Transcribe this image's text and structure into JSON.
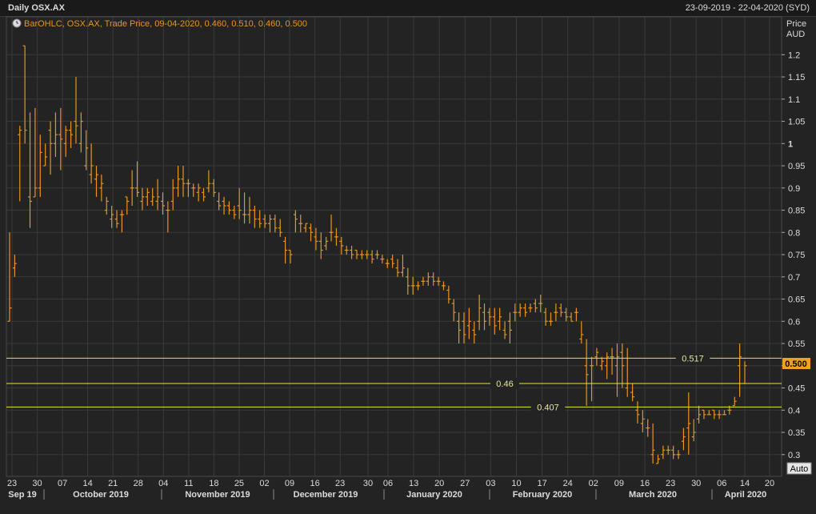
{
  "header": {
    "title": "Daily OSX.AX",
    "date_range": "23-09-2019 - 22-04-2020 (SYD)"
  },
  "legend": {
    "icon": "clock-icon",
    "text": "BarOHLC, OSX.AX, Trade Price, 09-04-2020, 0.460, 0.510, 0.460, 0.500"
  },
  "axis": {
    "price_label": "Price",
    "currency_label": "AUD",
    "auto_button": "Auto",
    "current_price_label": "0.500"
  },
  "colors": {
    "background": "#232323",
    "bars": "#e8951e",
    "grid": "#3a3a3a",
    "level_lines": "#e6e62e",
    "price_tag": "#f0a020"
  },
  "chart_data": {
    "type": "ohlc",
    "ylim": [
      0.26,
      1.26
    ],
    "grid": true,
    "y_ticks": [
      "1.2",
      "1.15",
      "1.1",
      "1.05",
      "1",
      "0.95",
      "0.9",
      "0.85",
      "0.8",
      "0.75",
      "0.7",
      "0.65",
      "0.6",
      "0.55",
      "0.5",
      "0.45",
      "0.4",
      "0.35",
      "0.3"
    ],
    "x_day_labels": [
      "23",
      "30",
      "07",
      "14",
      "21",
      "28",
      "04",
      "11",
      "18",
      "25",
      "02",
      "09",
      "16",
      "23",
      "30",
      "06",
      "13",
      "20",
      "27",
      "03",
      "10",
      "17",
      "24",
      "02",
      "09",
      "16",
      "23",
      "30",
      "06",
      "14",
      "20"
    ],
    "month_labels": [
      "Sep 19",
      "October 2019",
      "November 2019",
      "December 2019",
      "January 2020",
      "February 2020",
      "March 2020",
      "April 2020"
    ],
    "levels": [
      {
        "value": 0.517,
        "label": "0.517"
      },
      {
        "value": 0.46,
        "label": "0.46"
      },
      {
        "value": 0.407,
        "label": "0.407"
      }
    ],
    "bars": [
      [
        0.6,
        0.8,
        0.6,
        0.63
      ],
      [
        0.72,
        0.75,
        0.7,
        0.73
      ],
      [
        1.02,
        1.04,
        0.87,
        1.03
      ],
      [
        1.22,
        1.22,
        1.0,
        1.03
      ],
      [
        0.88,
        1.07,
        0.81,
        0.87
      ],
      [
        0.88,
        1.08,
        0.88,
        0.9
      ],
      [
        0.9,
        1.02,
        0.88,
        0.98
      ],
      [
        0.95,
        1.0,
        0.95,
        0.97
      ],
      [
        1.03,
        1.05,
        0.93,
        1.0
      ],
      [
        1.0,
        1.07,
        0.97,
        1.02
      ],
      [
        1.02,
        1.08,
        0.94,
        1.01
      ],
      [
        1.0,
        1.04,
        0.97,
        1.03
      ],
      [
        1.03,
        1.05,
        0.99,
        1.02
      ],
      [
        1.05,
        1.15,
        1.0,
        1.04
      ],
      [
        1.0,
        1.07,
        0.98,
        1.05
      ],
      [
        0.95,
        1.03,
        0.94,
        0.99
      ],
      [
        0.93,
        1.0,
        0.91,
        0.95
      ],
      [
        0.92,
        0.95,
        0.88,
        0.93
      ],
      [
        0.9,
        0.93,
        0.87,
        0.91
      ],
      [
        0.85,
        0.88,
        0.84,
        0.87
      ],
      [
        0.83,
        0.86,
        0.81,
        0.84
      ],
      [
        0.83,
        0.85,
        0.81,
        0.82
      ],
      [
        0.84,
        0.85,
        0.8,
        0.84
      ],
      [
        0.88,
        0.88,
        0.84,
        0.87
      ],
      [
        0.9,
        0.94,
        0.86,
        0.9
      ],
      [
        0.9,
        0.96,
        0.88,
        0.89
      ],
      [
        0.87,
        0.9,
        0.85,
        0.88
      ],
      [
        0.88,
        0.9,
        0.86,
        0.89
      ],
      [
        0.87,
        0.9,
        0.86,
        0.88
      ],
      [
        0.87,
        0.92,
        0.85,
        0.88
      ],
      [
        0.87,
        0.89,
        0.84,
        0.86
      ],
      [
        0.85,
        0.87,
        0.8,
        0.85
      ],
      [
        0.87,
        0.92,
        0.85,
        0.9
      ],
      [
        0.9,
        0.95,
        0.88,
        0.92
      ],
      [
        0.92,
        0.95,
        0.88,
        0.91
      ],
      [
        0.91,
        0.92,
        0.88,
        0.91
      ],
      [
        0.9,
        0.91,
        0.88,
        0.9
      ],
      [
        0.89,
        0.91,
        0.87,
        0.9
      ],
      [
        0.89,
        0.9,
        0.87,
        0.88
      ],
      [
        0.9,
        0.94,
        0.89,
        0.91
      ],
      [
        0.91,
        0.92,
        0.88,
        0.89
      ],
      [
        0.87,
        0.89,
        0.85,
        0.86
      ],
      [
        0.87,
        0.88,
        0.84,
        0.86
      ],
      [
        0.86,
        0.87,
        0.84,
        0.85
      ],
      [
        0.85,
        0.86,
        0.83,
        0.84
      ],
      [
        0.86,
        0.9,
        0.83,
        0.85
      ],
      [
        0.84,
        0.89,
        0.82,
        0.84
      ],
      [
        0.84,
        0.88,
        0.82,
        0.85
      ],
      [
        0.85,
        0.86,
        0.81,
        0.83
      ],
      [
        0.83,
        0.85,
        0.81,
        0.82
      ],
      [
        0.83,
        0.84,
        0.81,
        0.82
      ],
      [
        0.82,
        0.84,
        0.8,
        0.83
      ],
      [
        0.83,
        0.84,
        0.8,
        0.81
      ],
      [
        0.81,
        0.83,
        0.79,
        0.8
      ],
      [
        0.78,
        0.79,
        0.73,
        0.76
      ],
      [
        0.76,
        0.76,
        0.73,
        0.75
      ],
      [
        0.84,
        0.85,
        0.8,
        0.83
      ],
      [
        0.82,
        0.84,
        0.8,
        0.82
      ],
      [
        0.81,
        0.82,
        0.8,
        0.82
      ],
      [
        0.81,
        0.82,
        0.78,
        0.8
      ],
      [
        0.79,
        0.81,
        0.76,
        0.78
      ],
      [
        0.78,
        0.8,
        0.74,
        0.76
      ],
      [
        0.77,
        0.79,
        0.76,
        0.78
      ],
      [
        0.8,
        0.84,
        0.78,
        0.8
      ],
      [
        0.79,
        0.81,
        0.77,
        0.79
      ],
      [
        0.78,
        0.79,
        0.75,
        0.77
      ],
      [
        0.76,
        0.77,
        0.75,
        0.76
      ],
      [
        0.76,
        0.77,
        0.74,
        0.75
      ],
      [
        0.76,
        0.76,
        0.74,
        0.75
      ],
      [
        0.75,
        0.76,
        0.74,
        0.75
      ],
      [
        0.75,
        0.76,
        0.74,
        0.75
      ],
      [
        0.75,
        0.76,
        0.73,
        0.74
      ],
      [
        0.75,
        0.76,
        0.74,
        0.75
      ],
      [
        0.74,
        0.75,
        0.73,
        0.74
      ],
      [
        0.73,
        0.74,
        0.72,
        0.73
      ],
      [
        0.74,
        0.75,
        0.72,
        0.73
      ],
      [
        0.72,
        0.74,
        0.7,
        0.71
      ],
      [
        0.71,
        0.75,
        0.7,
        0.72
      ],
      [
        0.7,
        0.72,
        0.66,
        0.68
      ],
      [
        0.68,
        0.7,
        0.66,
        0.68
      ],
      [
        0.68,
        0.69,
        0.67,
        0.68
      ],
      [
        0.69,
        0.7,
        0.68,
        0.69
      ],
      [
        0.69,
        0.71,
        0.68,
        0.7
      ],
      [
        0.7,
        0.71,
        0.68,
        0.69
      ],
      [
        0.69,
        0.7,
        0.68,
        0.69
      ],
      [
        0.68,
        0.69,
        0.67,
        0.68
      ],
      [
        0.67,
        0.68,
        0.64,
        0.65
      ],
      [
        0.64,
        0.65,
        0.6,
        0.62
      ],
      [
        0.6,
        0.62,
        0.55,
        0.58
      ],
      [
        0.6,
        0.62,
        0.55,
        0.57
      ],
      [
        0.59,
        0.63,
        0.56,
        0.6
      ],
      [
        0.58,
        0.6,
        0.55,
        0.57
      ],
      [
        0.6,
        0.66,
        0.58,
        0.63
      ],
      [
        0.62,
        0.64,
        0.58,
        0.6
      ],
      [
        0.62,
        0.63,
        0.59,
        0.61
      ],
      [
        0.61,
        0.63,
        0.57,
        0.59
      ],
      [
        0.6,
        0.63,
        0.58,
        0.61
      ],
      [
        0.58,
        0.6,
        0.56,
        0.57
      ],
      [
        0.6,
        0.62,
        0.55,
        0.58
      ],
      [
        0.62,
        0.64,
        0.6,
        0.62
      ],
      [
        0.62,
        0.64,
        0.61,
        0.63
      ],
      [
        0.63,
        0.64,
        0.61,
        0.62
      ],
      [
        0.63,
        0.64,
        0.62,
        0.63
      ],
      [
        0.64,
        0.65,
        0.62,
        0.63
      ],
      [
        0.64,
        0.66,
        0.62,
        0.64
      ],
      [
        0.62,
        0.63,
        0.59,
        0.6
      ],
      [
        0.6,
        0.62,
        0.59,
        0.6
      ],
      [
        0.62,
        0.64,
        0.6,
        0.62
      ],
      [
        0.63,
        0.64,
        0.61,
        0.62
      ],
      [
        0.62,
        0.63,
        0.6,
        0.61
      ],
      [
        0.61,
        0.62,
        0.6,
        0.6
      ],
      [
        0.62,
        0.63,
        0.6,
        0.62
      ],
      [
        0.56,
        0.6,
        0.55,
        0.57
      ],
      [
        0.5,
        0.56,
        0.41,
        0.48
      ],
      [
        0.5,
        0.52,
        0.42,
        0.5
      ],
      [
        0.52,
        0.54,
        0.5,
        0.53
      ],
      [
        0.5,
        0.52,
        0.49,
        0.51
      ],
      [
        0.5,
        0.53,
        0.47,
        0.52
      ],
      [
        0.52,
        0.54,
        0.48,
        0.52
      ],
      [
        0.5,
        0.55,
        0.43,
        0.52
      ],
      [
        0.53,
        0.55,
        0.45,
        0.5
      ],
      [
        0.45,
        0.54,
        0.43,
        0.46
      ],
      [
        0.44,
        0.46,
        0.42,
        0.43
      ],
      [
        0.4,
        0.42,
        0.37,
        0.39
      ],
      [
        0.37,
        0.4,
        0.35,
        0.38
      ],
      [
        0.36,
        0.38,
        0.34,
        0.36
      ],
      [
        0.3,
        0.37,
        0.28,
        0.31
      ],
      [
        0.28,
        0.3,
        0.28,
        0.29
      ],
      [
        0.3,
        0.32,
        0.29,
        0.31
      ],
      [
        0.31,
        0.32,
        0.3,
        0.31
      ],
      [
        0.31,
        0.32,
        0.29,
        0.3
      ],
      [
        0.3,
        0.31,
        0.29,
        0.3
      ],
      [
        0.33,
        0.36,
        0.31,
        0.34
      ],
      [
        0.36,
        0.44,
        0.3,
        0.37
      ],
      [
        0.34,
        0.38,
        0.33,
        0.35
      ],
      [
        0.38,
        0.41,
        0.37,
        0.39
      ],
      [
        0.4,
        0.4,
        0.38,
        0.39
      ],
      [
        0.39,
        0.4,
        0.39,
        0.39
      ],
      [
        0.4,
        0.4,
        0.38,
        0.39
      ],
      [
        0.39,
        0.4,
        0.38,
        0.39
      ],
      [
        0.39,
        0.4,
        0.39,
        0.39
      ],
      [
        0.4,
        0.41,
        0.39,
        0.4
      ],
      [
        0.41,
        0.43,
        0.41,
        0.42
      ],
      [
        0.5,
        0.55,
        0.43,
        0.52
      ],
      [
        0.46,
        0.51,
        0.46,
        0.5
      ]
    ]
  }
}
